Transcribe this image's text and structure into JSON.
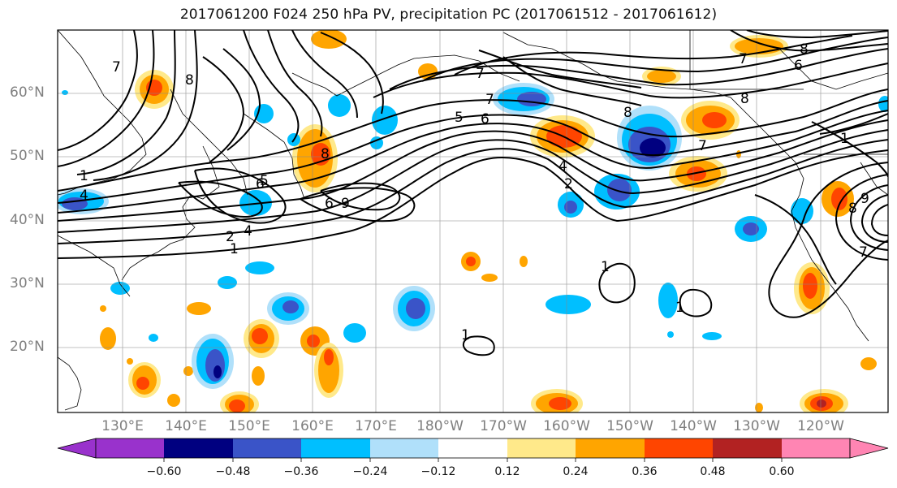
{
  "title": "2017061200 F024 250 hPa PV, precipitation PC (2017061512 - 2017061612)",
  "lat_labels": [
    "60°N",
    "50°N",
    "40°N",
    "30°N",
    "20°N"
  ],
  "lon_labels": [
    "130°E",
    "140°E",
    "150°E",
    "160°E",
    "170°E",
    "180°W",
    "170°W",
    "160°W",
    "150°W",
    "140°W",
    "130°W",
    "120°W"
  ],
  "colorbar": {
    "tick_labels": [
      "−0.60",
      "−0.48",
      "−0.36",
      "−0.24",
      "−0.12",
      "0.12",
      "0.24",
      "0.36",
      "0.48",
      "0.60"
    ],
    "colors": [
      "#9932cc",
      "#000080",
      "#3a54c8",
      "#00bfff",
      "#b0e0fa",
      "#ffffff",
      "#ffe98a",
      "#ffa500",
      "#ff4500",
      "#b22222",
      "#ff85b3"
    ]
  },
  "contour_labels": [
    "1",
    "2",
    "4",
    "5",
    "6",
    "7",
    "8",
    "9"
  ]
}
